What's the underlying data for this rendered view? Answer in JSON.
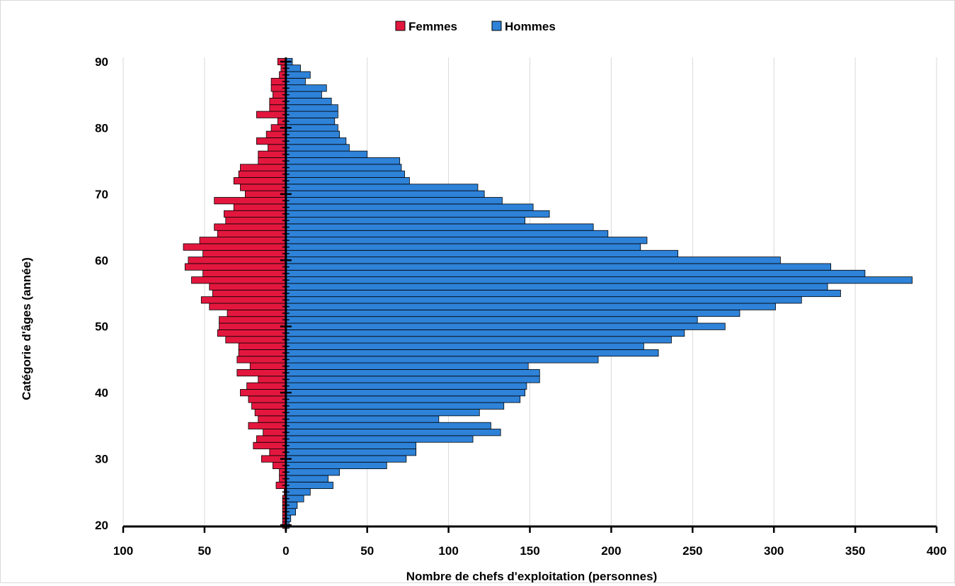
{
  "chart_data": {
    "type": "bar",
    "orientation": "horizontal",
    "title": "",
    "xlabel": "Nombre de chefs d'exploitation (personnes)",
    "ylabel": "Catégorie d'âges (année)",
    "legend": {
      "placement": "top-center",
      "entries": [
        "Femmes",
        "Hommes"
      ]
    },
    "x_ticks": [
      "100",
      "50",
      "0",
      "50",
      "100",
      "150",
      "200",
      "250",
      "300",
      "350",
      "400"
    ],
    "x_tick_values": [
      -100,
      -50,
      0,
      50,
      100,
      150,
      200,
      250,
      300,
      350,
      400
    ],
    "y_ticks": [
      "20",
      "30",
      "40",
      "50",
      "60",
      "70",
      "80",
      "90"
    ],
    "y_tick_values": [
      20,
      30,
      40,
      50,
      60,
      70,
      80,
      90
    ],
    "xlim": [
      -100,
      400
    ],
    "ylim": [
      19.5,
      90.5
    ],
    "grid": "vertical",
    "categories": [
      20,
      21,
      22,
      23,
      24,
      25,
      26,
      27,
      28,
      29,
      30,
      31,
      32,
      33,
      34,
      35,
      36,
      37,
      38,
      39,
      40,
      41,
      42,
      43,
      44,
      45,
      46,
      47,
      48,
      49,
      50,
      51,
      52,
      53,
      54,
      55,
      56,
      57,
      58,
      59,
      60,
      61,
      62,
      63,
      64,
      65,
      66,
      67,
      68,
      69,
      70,
      71,
      72,
      73,
      74,
      75,
      76,
      77,
      78,
      79,
      80,
      81,
      82,
      83,
      84,
      85,
      86,
      87,
      88,
      89,
      90
    ],
    "series": [
      {
        "name": "Femmes",
        "color": "#e3173e",
        "values": [
          2,
          2,
          2,
          2,
          2,
          1,
          6,
          4,
          4,
          8,
          15,
          10,
          20,
          18,
          14,
          23,
          17,
          19,
          21,
          23,
          28,
          24,
          17,
          30,
          22,
          30,
          29,
          29,
          37,
          42,
          41,
          41,
          36,
          47,
          52,
          45,
          47,
          58,
          51,
          62,
          60,
          51,
          63,
          53,
          42,
          44,
          37,
          38,
          32,
          44,
          25,
          28,
          32,
          29,
          28,
          17,
          17,
          11,
          18,
          12,
          9,
          5,
          18,
          10,
          10,
          8,
          9,
          9,
          4,
          3,
          5
        ],
        "values_note_sign": "plotted to the left of zero"
      },
      {
        "name": "Hommes",
        "color": "#2e82d8",
        "values": [
          2,
          3,
          6,
          7,
          11,
          15,
          29,
          26,
          33,
          62,
          74,
          80,
          80,
          115,
          132,
          126,
          94,
          119,
          134,
          144,
          147,
          148,
          156,
          156,
          149,
          192,
          229,
          220,
          237,
          245,
          270,
          253,
          279,
          301,
          317,
          341,
          333,
          385,
          356,
          335,
          304,
          241,
          218,
          222,
          198,
          189,
          147,
          162,
          152,
          133,
          122,
          118,
          76,
          73,
          71,
          70,
          50,
          39,
          37,
          33,
          32,
          30,
          32,
          32,
          28,
          22,
          25,
          12,
          15,
          9,
          4
        ]
      }
    ]
  }
}
